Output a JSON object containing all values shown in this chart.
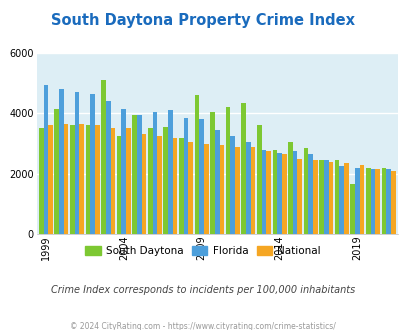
{
  "title": "South Daytona Property Crime Index",
  "subtitle": "Crime Index corresponds to incidents per 100,000 inhabitants",
  "footer": "© 2024 CityRating.com - https://www.cityrating.com/crime-statistics/",
  "years": [
    1999,
    2000,
    2001,
    2002,
    2003,
    2004,
    2005,
    2006,
    2007,
    2008,
    2009,
    2010,
    2011,
    2012,
    2013,
    2014,
    2015,
    2016,
    2017,
    2018,
    2019,
    2020,
    2021
  ],
  "south_daytona": [
    3500,
    4150,
    3600,
    3600,
    5100,
    3250,
    3950,
    3500,
    3550,
    3200,
    4600,
    4050,
    4200,
    4350,
    3600,
    2800,
    3050,
    2850,
    2450,
    2450,
    1650,
    2200,
    2200
  ],
  "florida": [
    4950,
    4800,
    4700,
    4650,
    4400,
    4150,
    3950,
    4050,
    4100,
    3850,
    3800,
    3450,
    3250,
    3050,
    2800,
    2700,
    2750,
    2650,
    2450,
    2250,
    2200,
    2150,
    2150
  ],
  "national": [
    3600,
    3650,
    3650,
    3600,
    3500,
    3500,
    3300,
    3250,
    3200,
    3050,
    3000,
    2950,
    2900,
    2900,
    2750,
    2650,
    2500,
    2450,
    2400,
    2350,
    2300,
    2150,
    2100
  ],
  "bar_colors": {
    "south_daytona": "#7dc832",
    "florida": "#4d9fdb",
    "national": "#f5a623"
  },
  "bg_color": "#ddeef5",
  "ylim": [
    0,
    6000
  ],
  "yticks": [
    0,
    2000,
    4000,
    6000
  ],
  "title_color": "#1a6bbd",
  "subtitle_color": "#444444",
  "footer_color": "#999999",
  "xtick_years": [
    1999,
    2004,
    2009,
    2014,
    2019
  ],
  "legend_labels": [
    "South Daytona",
    "Florida",
    "National"
  ]
}
